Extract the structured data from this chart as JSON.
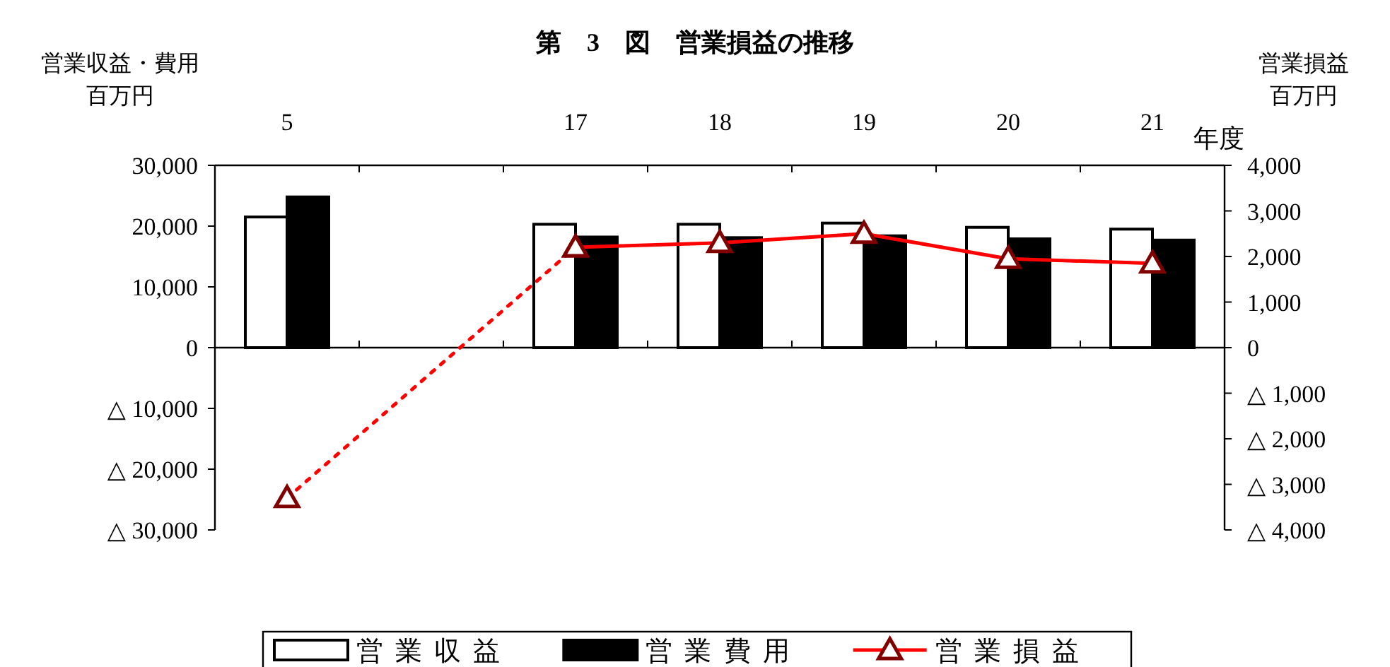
{
  "chart_data": {
    "type": "bar",
    "title": "第　3　図　営業損益の推移",
    "xlabel": "年度",
    "ylabel": "営業収益・費用",
    "y2label": "営業損益",
    "annotations": [
      "百万円",
      "百万円"
    ],
    "categories": [
      "5",
      null,
      "17",
      "18",
      "19",
      "20",
      "21"
    ],
    "ylim": [
      -30000,
      30000
    ],
    "yticks": [
      {
        "value": 30000,
        "label": "30,000"
      },
      {
        "value": 20000,
        "label": "20,000"
      },
      {
        "value": 10000,
        "label": "10,000"
      },
      0,
      {
        "value": -10000,
        "label": "△ 10,000"
      },
      {
        "value": -20000,
        "label": "△ 20,000"
      },
      {
        "value": -30000,
        "label": "△ 30,000"
      }
    ],
    "y2lim": [
      -4000,
      4000
    ],
    "y2ticks": [
      {
        "value": 4000,
        "label": "4,000"
      },
      {
        "value": 3000,
        "label": "3,000"
      },
      {
        "value": 2000,
        "label": "2,000"
      },
      {
        "value": 1000,
        "label": "1,000"
      },
      0,
      {
        "value": -1000,
        "label": "△ 1,000"
      },
      {
        "value": -2000,
        "label": "△ 2,000"
      },
      {
        "value": -3000,
        "label": "△ 3,000"
      },
      {
        "value": -4000,
        "label": "△ 4,000"
      }
    ],
    "legend": "bottom",
    "marker": "triangle",
    "series": [
      {
        "name": "営業収益",
        "color": "#ffffff",
        "values": [
          21500,
          null,
          20300,
          20300,
          20500,
          19800,
          19500
        ]
      },
      {
        "name": "営業費用",
        "color": "#000000",
        "values": [
          24800,
          null,
          18200,
          18100,
          18400,
          17900,
          17700
        ]
      },
      {
        "type": "line",
        "axis": "y2",
        "color": "#ff0000",
        "line_style": "dotted",
        "x": [
          "5",
          "17"
        ],
        "values": [
          -3300,
          2200
        ]
      },
      {
        "name": "営業損益",
        "type": "line",
        "axis": "y2",
        "color": "#ff0000",
        "line_style": "solid",
        "values": [
          null,
          null,
          2200,
          2300,
          2500,
          1950,
          1850
        ]
      }
    ]
  }
}
